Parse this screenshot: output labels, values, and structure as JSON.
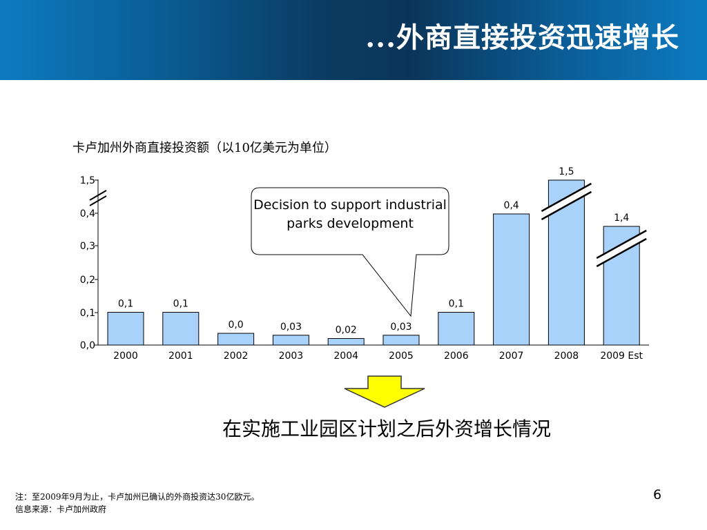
{
  "header": {
    "title": "...外商直接投资迅速增长"
  },
  "chart_data": {
    "type": "bar",
    "title": "卡卢加州外商直接投资额（以10亿美元为单位）",
    "categories": [
      "2000",
      "2001",
      "2002",
      "2003",
      "2004",
      "2005",
      "2006",
      "2007",
      "2008",
      "2009 Est"
    ],
    "values": [
      0.1,
      0.1,
      0.0,
      0.03,
      0.02,
      0.03,
      0.1,
      0.4,
      1.5,
      1.4
    ],
    "value_labels": [
      "0,1",
      "0,1",
      "0,0",
      "0,03",
      "0,02",
      "0,03",
      "0,1",
      "0,4",
      "1,5",
      "1,4"
    ],
    "y_ticks": [
      "0,0",
      "0,1",
      "0,2",
      "0,3",
      "0,4",
      "1,5"
    ],
    "broken_axis": true,
    "bar_color": "#a9d2fb",
    "annotation": "Decision to support industrial parks development"
  },
  "conclusion": "在实施工业园区计划之后外资增长情况",
  "footnote": {
    "line1": "注：至2009年9月为止，卡卢加州已确认的外商投资达30亿欧元。",
    "line2": "信息来源：卡卢加州政府"
  },
  "page_number": "6",
  "colors": {
    "arrow_fill": "#ffff00",
    "arrow_stroke": "#333333"
  }
}
